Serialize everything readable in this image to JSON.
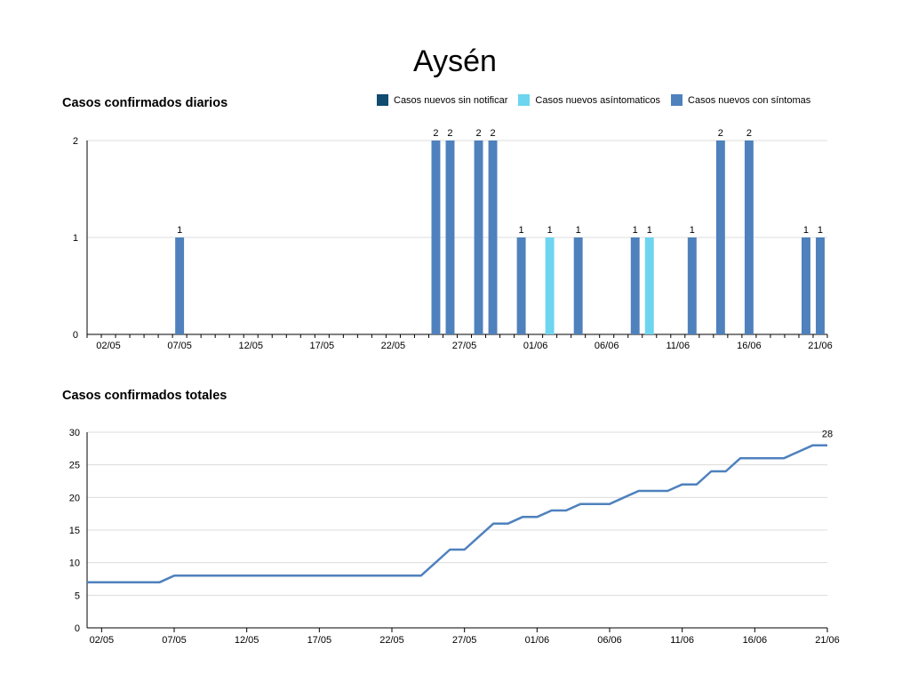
{
  "page": {
    "title": "Aysén"
  },
  "colors": {
    "sin_notificar": "#0f4c6e",
    "asintomaticos": "#6dd5ef",
    "con_sintomas": "#4f81bd",
    "line": "#4f81bd",
    "grid": "#dcdcdc",
    "axis": "#000000"
  },
  "chart_data": [
    {
      "type": "bar",
      "title": "Casos confirmados diarios",
      "legend_position": "top-right",
      "legend": [
        {
          "name": "Casos nuevos sin notificar",
          "color": "#0f4c6e"
        },
        {
          "name": "Casos nuevos asíntomaticos",
          "color": "#6dd5ef"
        },
        {
          "name": "Casos nuevos con síntomas",
          "color": "#4f81bd"
        }
      ],
      "x_start": "01/05",
      "x_end": "21/06",
      "x_tick_labels": [
        "02/05",
        "07/05",
        "12/05",
        "17/05",
        "22/05",
        "27/05",
        "01/06",
        "06/06",
        "11/06",
        "16/06",
        "21/06"
      ],
      "ylim": [
        0,
        2
      ],
      "yticks": [
        0,
        1,
        2
      ],
      "grid": true,
      "series": [
        {
          "name": "Casos nuevos sin notificar",
          "color": "#0f4c6e",
          "points": []
        },
        {
          "name": "Casos nuevos asíntomaticos",
          "color": "#6dd5ef",
          "points": [
            {
              "x": "02/06",
              "y": 1
            },
            {
              "x": "09/06",
              "y": 1
            }
          ]
        },
        {
          "name": "Casos nuevos con síntomas",
          "color": "#4f81bd",
          "points": [
            {
              "x": "07/05",
              "y": 1
            },
            {
              "x": "25/05",
              "y": 2
            },
            {
              "x": "26/05",
              "y": 2
            },
            {
              "x": "28/05",
              "y": 2
            },
            {
              "x": "29/05",
              "y": 2
            },
            {
              "x": "31/05",
              "y": 1
            },
            {
              "x": "04/06",
              "y": 1
            },
            {
              "x": "08/06",
              "y": 1
            },
            {
              "x": "12/06",
              "y": 1
            },
            {
              "x": "14/06",
              "y": 2
            },
            {
              "x": "16/06",
              "y": 2
            },
            {
              "x": "20/06",
              "y": 1
            },
            {
              "x": "21/06",
              "y": 1
            }
          ]
        }
      ]
    },
    {
      "type": "line",
      "title": "Casos confirmados totales",
      "x_tick_labels": [
        "02/05",
        "07/05",
        "12/05",
        "17/05",
        "22/05",
        "27/05",
        "01/06",
        "06/06",
        "11/06",
        "16/06",
        "21/06"
      ],
      "ylim": [
        0,
        30
      ],
      "yticks": [
        0,
        5,
        10,
        15,
        20,
        25,
        30
      ],
      "grid": true,
      "end_label": "28",
      "series": [
        {
          "name": "Casos confirmados totales",
          "color": "#4f81bd",
          "points": [
            {
              "x": "01/05",
              "y": 7
            },
            {
              "x": "06/05",
              "y": 7
            },
            {
              "x": "07/05",
              "y": 8
            },
            {
              "x": "24/05",
              "y": 8
            },
            {
              "x": "25/05",
              "y": 10
            },
            {
              "x": "26/05",
              "y": 12
            },
            {
              "x": "27/05",
              "y": 12
            },
            {
              "x": "28/05",
              "y": 14
            },
            {
              "x": "29/05",
              "y": 16
            },
            {
              "x": "30/05",
              "y": 16
            },
            {
              "x": "31/05",
              "y": 17
            },
            {
              "x": "01/06",
              "y": 17
            },
            {
              "x": "02/06",
              "y": 18
            },
            {
              "x": "03/06",
              "y": 18
            },
            {
              "x": "04/06",
              "y": 19
            },
            {
              "x": "06/06",
              "y": 19
            },
            {
              "x": "07/06",
              "y": 20
            },
            {
              "x": "08/06",
              "y": 21
            },
            {
              "x": "10/06",
              "y": 21
            },
            {
              "x": "11/06",
              "y": 22
            },
            {
              "x": "12/06",
              "y": 22
            },
            {
              "x": "13/06",
              "y": 24
            },
            {
              "x": "14/06",
              "y": 24
            },
            {
              "x": "15/06",
              "y": 26
            },
            {
              "x": "18/06",
              "y": 26
            },
            {
              "x": "20/06",
              "y": 28
            },
            {
              "x": "21/06",
              "y": 28
            }
          ]
        }
      ]
    }
  ]
}
